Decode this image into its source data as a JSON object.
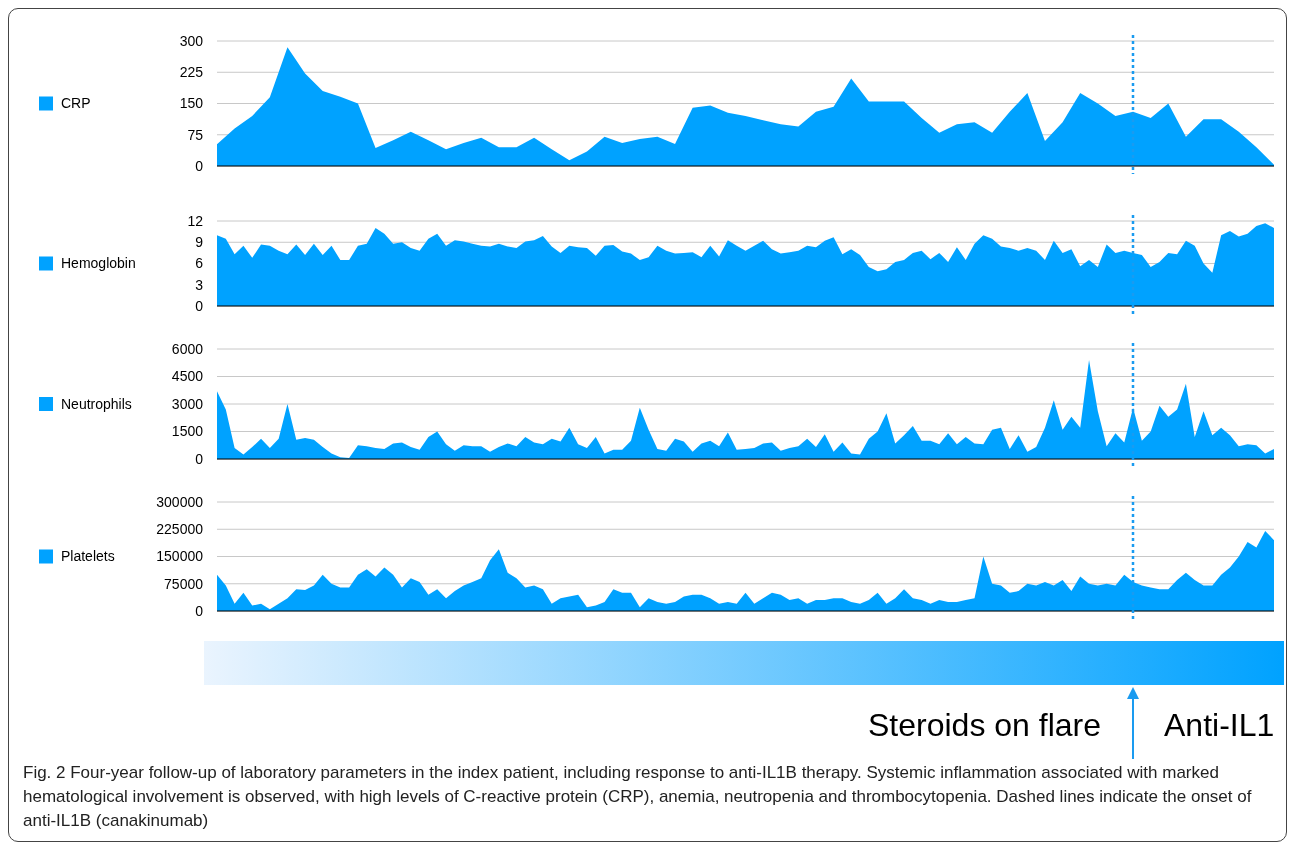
{
  "chart_data": [
    {
      "type": "area",
      "categories": [
        null,
        null,
        null,
        null,
        null,
        null,
        null,
        null,
        null,
        null,
        null,
        null,
        null,
        null,
        null,
        null,
        null,
        null,
        null,
        null,
        null,
        null,
        null,
        null,
        null,
        null,
        null,
        null,
        null,
        null,
        null,
        null,
        null,
        null,
        null,
        null,
        null,
        null,
        null,
        null,
        null,
        null,
        null,
        null,
        null,
        null,
        null,
        null,
        null,
        null,
        null,
        null,
        null,
        null,
        null,
        null,
        null,
        null,
        null,
        null,
        null
      ],
      "series": [
        {
          "name": "CRP",
          "color": "#00a2ff",
          "values": [
            52,
            90,
            120,
            165,
            285,
            222,
            180,
            166,
            150,
            43,
            62,
            82,
            62,
            40,
            55,
            68,
            45,
            45,
            68,
            40,
            14,
            35,
            70,
            55,
            65,
            70,
            53,
            140,
            145,
            128,
            120,
            110,
            100,
            95,
            130,
            142,
            210,
            155,
            155,
            155,
            115,
            80,
            100,
            105,
            80,
            130,
            175,
            60,
            105,
            175,
            150,
            120,
            130,
            115,
            150,
            70,
            112,
            112,
            82,
            45,
            3
          ]
        }
      ],
      "ylim": [
        0,
        300
      ],
      "yticks": [
        0,
        75,
        150,
        225,
        300
      ],
      "grid": "y",
      "legend": "left"
    },
    {
      "type": "area",
      "categories": [
        null,
        null,
        null,
        null,
        null,
        null,
        null,
        null,
        null,
        null,
        null,
        null,
        null,
        null,
        null,
        null,
        null,
        null,
        null,
        null,
        null,
        null,
        null,
        null,
        null,
        null,
        null,
        null,
        null,
        null,
        null,
        null,
        null,
        null,
        null,
        null,
        null,
        null,
        null,
        null,
        null,
        null,
        null,
        null,
        null,
        null,
        null,
        null,
        null,
        null,
        null,
        null,
        null,
        null,
        null,
        null,
        null,
        null,
        null,
        null,
        null,
        null,
        null,
        null,
        null,
        null,
        null,
        null,
        null,
        null,
        null,
        null,
        null,
        null,
        null,
        null,
        null,
        null,
        null,
        null,
        null,
        null,
        null,
        null,
        null,
        null,
        null,
        null,
        null,
        null,
        null,
        null,
        null,
        null,
        null,
        null,
        null,
        null,
        null,
        null,
        null,
        null,
        null,
        null,
        null,
        null,
        null,
        null,
        null,
        null,
        null,
        null,
        null,
        null,
        null,
        null,
        null,
        null,
        null,
        null,
        null
      ],
      "series": [
        {
          "name": "Hemoglobin",
          "color": "#00a2ff",
          "values": [
            10,
            9.5,
            7.3,
            8.5,
            6.8,
            8.7,
            8.5,
            7.8,
            7.3,
            8.7,
            7.2,
            8.8,
            7.2,
            8.5,
            6.5,
            6.5,
            8.5,
            8.8,
            11,
            10.2,
            8.8,
            9,
            8.2,
            7.8,
            9.5,
            10.2,
            8.5,
            9.3,
            9.1,
            8.8,
            8.5,
            8.4,
            8.8,
            8.4,
            8.2,
            9.1,
            9.3,
            9.9,
            8.4,
            7.5,
            8.5,
            8.3,
            8.2,
            7.1,
            8.5,
            8.6,
            7.7,
            7.4,
            6.5,
            6.9,
            8.5,
            7.8,
            7.4,
            7.5,
            7.6,
            6.9,
            8.5,
            7,
            9.3,
            8.5,
            7.8,
            8.5,
            9.2,
            8,
            7.4,
            7.6,
            7.8,
            8.5,
            8.3,
            9.2,
            9.7,
            7.3,
            8,
            7.2,
            5.5,
            4.9,
            5.2,
            6.2,
            6.5,
            7.5,
            7.8,
            6.6,
            7.5,
            6.2,
            8.3,
            6.5,
            8.8,
            10,
            9.5,
            8.4,
            8.2,
            7.8,
            8.2,
            7.8,
            6.5,
            9.2,
            7.5,
            8,
            5.6,
            6.5,
            5.5,
            8.7,
            7.5,
            7.8,
            7.5,
            7.2,
            5.5,
            6.2,
            7.5,
            7.3,
            9.2,
            8.5,
            6,
            4.7,
            10,
            10.6,
            9.8,
            10.2,
            11.3,
            11.7,
            11
          ]
        }
      ],
      "ylim": [
        0,
        12
      ],
      "yticks": [
        0,
        3,
        6,
        9,
        12
      ],
      "grid": "y",
      "legend": "left"
    },
    {
      "type": "area",
      "categories": [
        null,
        null,
        null,
        null,
        null,
        null,
        null,
        null,
        null,
        null,
        null,
        null,
        null,
        null,
        null,
        null,
        null,
        null,
        null,
        null,
        null,
        null,
        null,
        null,
        null,
        null,
        null,
        null,
        null,
        null,
        null,
        null,
        null,
        null,
        null,
        null,
        null,
        null,
        null,
        null,
        null,
        null,
        null,
        null,
        null,
        null,
        null,
        null,
        null,
        null,
        null,
        null,
        null,
        null,
        null,
        null,
        null,
        null,
        null,
        null,
        null,
        null,
        null,
        null,
        null,
        null,
        null,
        null,
        null,
        null,
        null,
        null,
        null,
        null,
        null,
        null,
        null,
        null,
        null,
        null,
        null,
        null,
        null,
        null,
        null,
        null,
        null,
        null,
        null,
        null,
        null,
        null,
        null,
        null,
        null,
        null,
        null,
        null,
        null,
        null,
        null,
        null,
        null,
        null,
        null,
        null,
        null,
        null,
        null,
        null,
        null,
        null,
        null,
        null,
        null,
        null,
        null,
        null,
        null,
        null,
        null
      ],
      "series": [
        {
          "name": "Neutrophils",
          "color": "#00a2ff",
          "values": [
            3700,
            2700,
            600,
            250,
            650,
            1100,
            600,
            1100,
            3000,
            1050,
            1150,
            1050,
            650,
            300,
            100,
            50,
            750,
            700,
            600,
            550,
            850,
            900,
            650,
            500,
            1200,
            1500,
            800,
            450,
            750,
            700,
            700,
            400,
            650,
            850,
            700,
            1200,
            900,
            800,
            1100,
            950,
            1700,
            800,
            600,
            1200,
            300,
            500,
            500,
            1000,
            2800,
            1600,
            550,
            450,
            1100,
            950,
            400,
            850,
            1000,
            700,
            1450,
            500,
            550,
            600,
            850,
            900,
            450,
            600,
            700,
            1100,
            650,
            1350,
            400,
            900,
            300,
            250,
            1100,
            1500,
            2500,
            850,
            1300,
            1800,
            1000,
            1000,
            800,
            1400,
            800,
            1200,
            850,
            800,
            1600,
            1700,
            550,
            1300,
            400,
            650,
            1700,
            3200,
            1600,
            2300,
            1700,
            5400,
            2600,
            700,
            1400,
            900,
            2800,
            1000,
            1500,
            2900,
            2300,
            2700,
            4100,
            1200,
            2600,
            1300,
            1700,
            1300,
            700,
            800,
            750,
            300,
            550
          ]
        }
      ],
      "ylim": [
        0,
        6000
      ],
      "yticks": [
        0,
        1500,
        3000,
        4500,
        6000
      ],
      "grid": "y",
      "legend": "left"
    },
    {
      "type": "area",
      "categories": [
        null,
        null,
        null,
        null,
        null,
        null,
        null,
        null,
        null,
        null,
        null,
        null,
        null,
        null,
        null,
        null,
        null,
        null,
        null,
        null,
        null,
        null,
        null,
        null,
        null,
        null,
        null,
        null,
        null,
        null,
        null,
        null,
        null,
        null,
        null,
        null,
        null,
        null,
        null,
        null,
        null,
        null,
        null,
        null,
        null,
        null,
        null,
        null,
        null,
        null,
        null,
        null,
        null,
        null,
        null,
        null,
        null,
        null,
        null,
        null,
        null,
        null,
        null,
        null,
        null,
        null,
        null,
        null,
        null,
        null,
        null,
        null,
        null,
        null,
        null,
        null,
        null,
        null,
        null,
        null,
        null,
        null,
        null,
        null,
        null,
        null,
        null,
        null,
        null,
        null,
        null,
        null,
        null,
        null,
        null,
        null,
        null,
        null,
        null,
        null,
        null,
        null,
        null,
        null,
        null,
        null,
        null,
        null,
        null,
        null,
        null,
        null,
        null,
        null,
        null,
        null,
        null,
        null,
        null,
        null,
        null
      ],
      "series": [
        {
          "name": "Platelets",
          "color": "#00a2ff",
          "values": [
            100000,
            70000,
            20000,
            50000,
            15000,
            20000,
            5000,
            20000,
            35000,
            60000,
            58000,
            70000,
            100000,
            75000,
            65000,
            65000,
            100000,
            115000,
            95000,
            120000,
            100000,
            65000,
            90000,
            80000,
            45000,
            60000,
            35000,
            55000,
            70000,
            80000,
            90000,
            140000,
            170000,
            105000,
            90000,
            65000,
            70000,
            60000,
            20000,
            35000,
            40000,
            45000,
            10000,
            15000,
            25000,
            60000,
            50000,
            50000,
            10000,
            35000,
            25000,
            20000,
            25000,
            40000,
            45000,
            45000,
            35000,
            20000,
            25000,
            20000,
            50000,
            20000,
            35000,
            50000,
            45000,
            30000,
            35000,
            20000,
            30000,
            30000,
            35000,
            35000,
            25000,
            20000,
            30000,
            50000,
            20000,
            35000,
            60000,
            35000,
            30000,
            20000,
            30000,
            25000,
            25000,
            30000,
            35000,
            150000,
            75000,
            70000,
            50000,
            55000,
            75000,
            70000,
            80000,
            70000,
            85000,
            55000,
            95000,
            75000,
            70000,
            75000,
            70000,
            100000,
            80000,
            70000,
            65000,
            60000,
            60000,
            85000,
            105000,
            85000,
            70000,
            70000,
            100000,
            120000,
            150000,
            190000,
            175000,
            220000,
            195000
          ]
        }
      ],
      "ylim": [
        0,
        300000
      ],
      "yticks": [
        0,
        75000,
        150000,
        225000,
        300000
      ],
      "grid": "y",
      "legend": "left"
    },
    {
      "type": "other",
      "annotations": [
        "Steroids on flare",
        "Anti-IL1",
        "Fig. 2 Four-year follow-up of laboratory parameters in the index patient, including response to anti-IL1B therapy. Systemic inflammation associated with marked hematological involvement is observed, with high levels of C-reactive protein (CRP), anemia, neutropenia and thrombocytopenia. Dashed lines indicate the onset of anti-IL1B (canakinumab)"
      ]
    }
  ]
}
